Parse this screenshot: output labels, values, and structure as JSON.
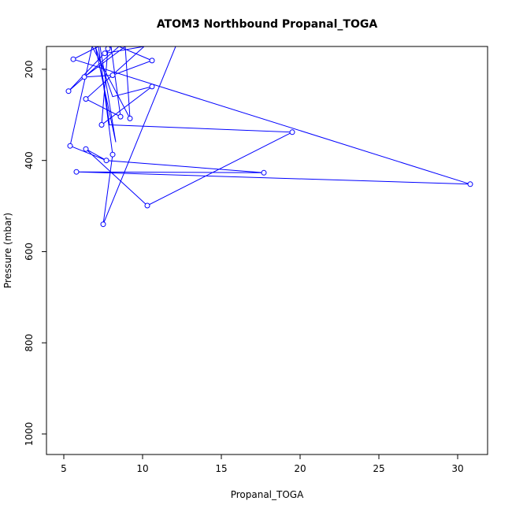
{
  "chart_data": {
    "type": "line",
    "title": "ATOM3 Northbound Propanal_TOGA",
    "xlabel": "Propanal_TOGA",
    "ylabel": "Pressure (mbar)",
    "xlim": [
      3.9,
      31.9
    ],
    "ylim": [
      1045,
      150
    ],
    "y_reversed": true,
    "xticks": [
      5,
      10,
      15,
      20,
      25,
      30
    ],
    "yticks": [
      200,
      400,
      600,
      800,
      1000
    ],
    "grid": false,
    "series_color": "#0000ff",
    "points": [
      {
        "x": 7.6,
        "y": 165
      },
      {
        "x": 7.8,
        "y": 155
      },
      {
        "x": 5.6,
        "y": 178
      },
      {
        "x": 10.6,
        "y": 181
      },
      {
        "x": 6.3,
        "y": 217
      },
      {
        "x": 8.1,
        "y": 213
      },
      {
        "x": 5.3,
        "y": 248
      },
      {
        "x": 10.6,
        "y": 238
      },
      {
        "x": 6.4,
        "y": 265
      },
      {
        "x": 8.6,
        "y": 304
      },
      {
        "x": 9.2,
        "y": 308
      },
      {
        "x": 7.4,
        "y": 322
      },
      {
        "x": 19.5,
        "y": 338
      },
      {
        "x": 5.4,
        "y": 368
      },
      {
        "x": 6.4,
        "y": 375
      },
      {
        "x": 8.1,
        "y": 387
      },
      {
        "x": 7.7,
        "y": 400
      },
      {
        "x": 5.8,
        "y": 425
      },
      {
        "x": 17.7,
        "y": 427
      },
      {
        "x": 30.8,
        "y": 452
      },
      {
        "x": 10.3,
        "y": 499
      },
      {
        "x": 7.5,
        "y": 540
      }
    ],
    "path": [
      {
        "x": 12.1,
        "y": 150
      },
      {
        "x": 7.5,
        "y": 540
      },
      {
        "x": 8.1,
        "y": 387
      },
      {
        "x": 7.2,
        "y": 150
      },
      {
        "x": 5.6,
        "y": 178
      },
      {
        "x": 30.8,
        "y": 452
      },
      {
        "x": 5.8,
        "y": 425
      },
      {
        "x": 17.7,
        "y": 427
      },
      {
        "x": 7.7,
        "y": 400
      },
      {
        "x": 5.4,
        "y": 368
      },
      {
        "x": 6.8,
        "y": 150
      },
      {
        "x": 9.2,
        "y": 308
      },
      {
        "x": 8.9,
        "y": 150
      },
      {
        "x": 6.3,
        "y": 217
      },
      {
        "x": 8.1,
        "y": 213
      },
      {
        "x": 10.6,
        "y": 181
      },
      {
        "x": 8.5,
        "y": 150
      },
      {
        "x": 5.3,
        "y": 248
      },
      {
        "x": 8.0,
        "y": 150
      },
      {
        "x": 8.6,
        "y": 304
      },
      {
        "x": 6.4,
        "y": 265
      },
      {
        "x": 10.1,
        "y": 150
      },
      {
        "x": 7.6,
        "y": 165
      },
      {
        "x": 7.8,
        "y": 155
      },
      {
        "x": 7.4,
        "y": 322
      },
      {
        "x": 10.6,
        "y": 238
      },
      {
        "x": 8.1,
        "y": 260
      },
      {
        "x": 7.0,
        "y": 150
      },
      {
        "x": 8.3,
        "y": 360
      },
      {
        "x": 7.3,
        "y": 150
      },
      {
        "x": 7.2,
        "y": 150
      },
      {
        "x": 7.9,
        "y": 322
      },
      {
        "x": 19.5,
        "y": 338
      },
      {
        "x": 10.3,
        "y": 499
      },
      {
        "x": 6.4,
        "y": 375
      },
      {
        "x": 7.7,
        "y": 400
      }
    ]
  }
}
